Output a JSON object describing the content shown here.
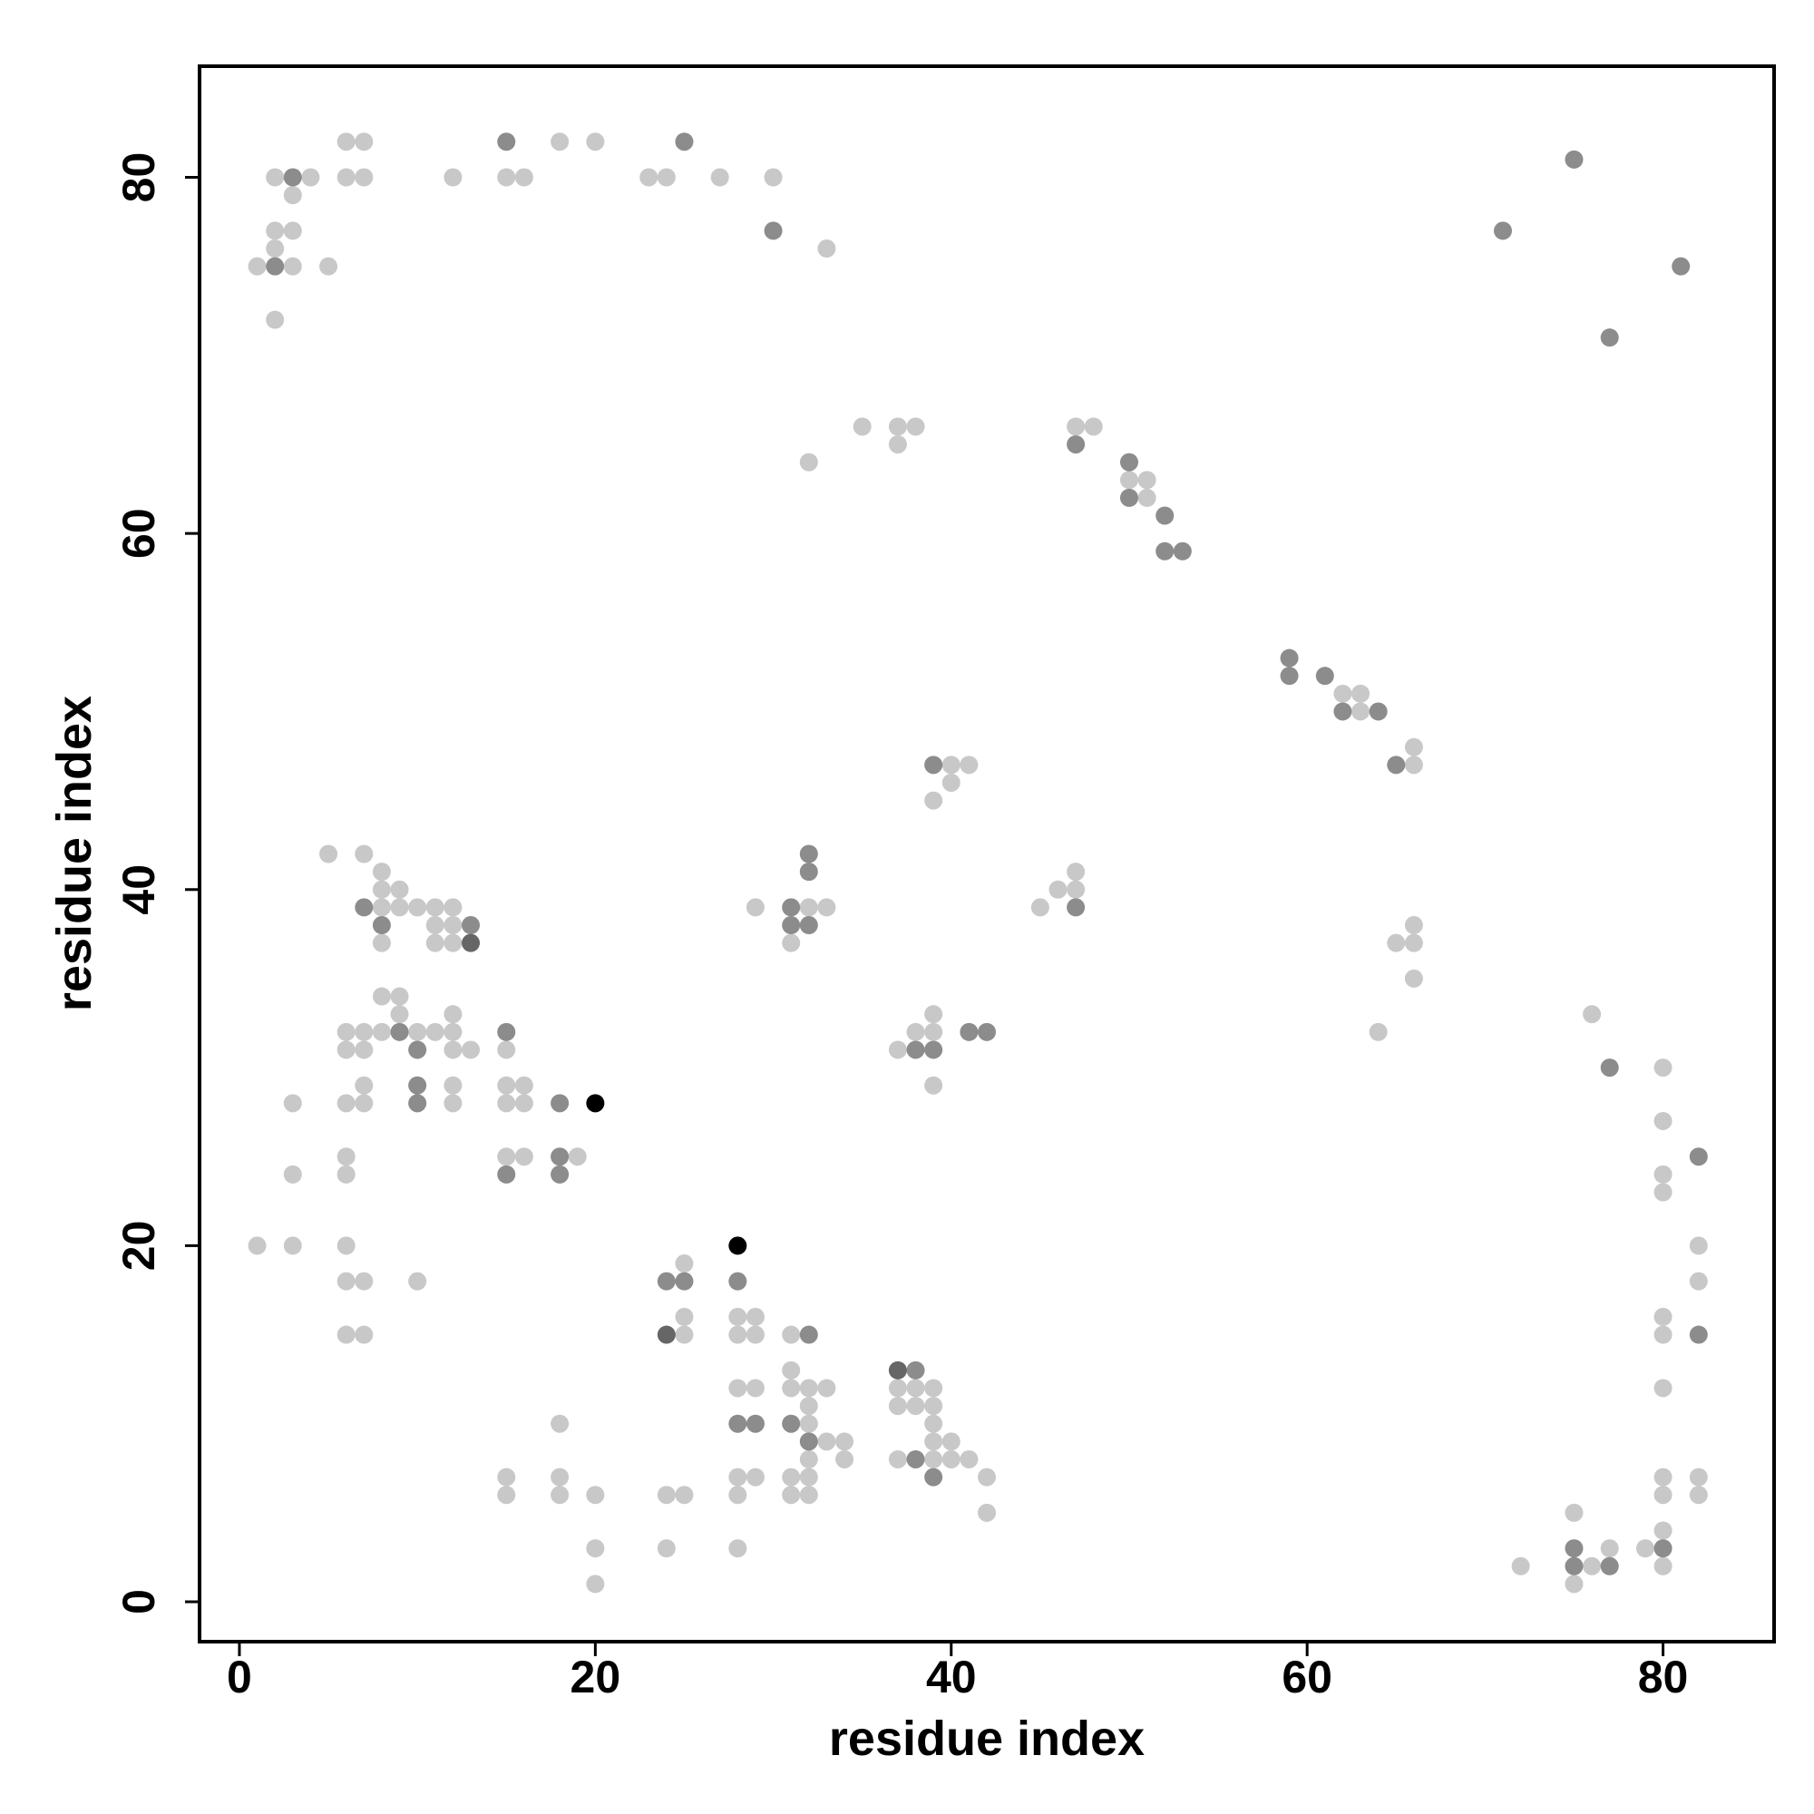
{
  "chart_data": {
    "type": "scatter",
    "x_label": "residue index",
    "y_label": "residue index",
    "xlim": [
      -2.24,
      86.24
    ],
    "ylim": [
      -2.24,
      86.24
    ],
    "xticks": [
      0,
      20,
      40,
      60,
      80
    ],
    "yticks": [
      0,
      20,
      40,
      60,
      80
    ],
    "grid": false,
    "series": [
      {
        "color": "#c8c8c8",
        "x": [
          6,
          7,
          18,
          20,
          2,
          4,
          6,
          7,
          12,
          15,
          16,
          23,
          24,
          27,
          30,
          3,
          2,
          3,
          2,
          33,
          1,
          3,
          5,
          2,
          35,
          37,
          38,
          47,
          48,
          37,
          32,
          50,
          51,
          51,
          62,
          63,
          63,
          66,
          40,
          41,
          66,
          40,
          39,
          5,
          7,
          8,
          47,
          8,
          9,
          46,
          47,
          8,
          9,
          10,
          11,
          12,
          29,
          32,
          33,
          45,
          11,
          12,
          66,
          8,
          11,
          12,
          31,
          65,
          66,
          66,
          8,
          9,
          9,
          12,
          39,
          76,
          6,
          7,
          8,
          10,
          11,
          12,
          38,
          39,
          64,
          6,
          7,
          12,
          13,
          15,
          37,
          80,
          7,
          12,
          15,
          16,
          39,
          3,
          6,
          7,
          12,
          15,
          16,
          80,
          6,
          15,
          16,
          19,
          3,
          6,
          80,
          80,
          1,
          3,
          6,
          82,
          25,
          6,
          7,
          10,
          82,
          25,
          28,
          29,
          80,
          6,
          7,
          25,
          28,
          29,
          31,
          80,
          31,
          28,
          29,
          31,
          32,
          33,
          37,
          38,
          39,
          80,
          32,
          37,
          38,
          39,
          18,
          32,
          39,
          33,
          34,
          39,
          40,
          32,
          34,
          37,
          39,
          40,
          41,
          15,
          18,
          28,
          29,
          31,
          32,
          42,
          80,
          82,
          15,
          18,
          20,
          24,
          25,
          28,
          31,
          32,
          80,
          82,
          42,
          75,
          80,
          20,
          24,
          28,
          77,
          79,
          72,
          76,
          80,
          20,
          75
        ],
        "values": [
          82,
          82,
          82,
          82,
          80,
          80,
          80,
          80,
          80,
          80,
          80,
          80,
          80,
          80,
          80,
          79,
          77,
          77,
          76,
          76,
          75,
          75,
          75,
          72,
          66,
          66,
          66,
          66,
          66,
          65,
          64,
          63,
          63,
          62,
          51,
          51,
          50,
          48,
          47,
          47,
          47,
          46,
          45,
          42,
          42,
          41,
          41,
          40,
          40,
          40,
          40,
          39,
          39,
          39,
          39,
          39,
          39,
          39,
          39,
          39,
          38,
          38,
          38,
          37,
          37,
          37,
          37,
          37,
          37,
          35,
          34,
          34,
          33,
          33,
          33,
          33,
          32,
          32,
          32,
          32,
          32,
          32,
          32,
          32,
          32,
          31,
          31,
          31,
          31,
          31,
          31,
          30,
          29,
          29,
          29,
          29,
          29,
          28,
          28,
          28,
          28,
          28,
          28,
          27,
          25,
          25,
          25,
          25,
          24,
          24,
          24,
          23,
          20,
          20,
          20,
          20,
          19,
          18,
          18,
          18,
          18,
          16,
          16,
          16,
          16,
          15,
          15,
          15,
          15,
          15,
          15,
          15,
          13,
          12,
          12,
          12,
          12,
          12,
          12,
          12,
          12,
          12,
          11,
          11,
          11,
          11,
          10,
          10,
          10,
          9,
          9,
          9,
          9,
          8,
          8,
          8,
          8,
          8,
          8,
          7,
          7,
          7,
          7,
          7,
          7,
          7,
          7,
          7,
          6,
          6,
          6,
          6,
          6,
          6,
          6,
          6,
          6,
          6,
          5,
          5,
          4,
          3,
          3,
          3,
          3,
          3,
          2,
          2,
          2,
          1,
          1
        ]
      },
      {
        "color": "#8c8c8c",
        "x": [
          15,
          25,
          75,
          3,
          30,
          71,
          2,
          81,
          77,
          47,
          50,
          50,
          52,
          52,
          53,
          59,
          59,
          61,
          62,
          64,
          39,
          65,
          32,
          32,
          7,
          31,
          47,
          8,
          13,
          31,
          32,
          9,
          15,
          41,
          42,
          10,
          38,
          39,
          77,
          10,
          10,
          18,
          18,
          82,
          15,
          18,
          24,
          25,
          28,
          32,
          82,
          38,
          28,
          29,
          31,
          32,
          38,
          39,
          75,
          80,
          75,
          77
        ],
        "values": [
          82,
          82,
          81,
          80,
          77,
          77,
          75,
          75,
          71,
          65,
          64,
          62,
          61,
          59,
          59,
          53,
          52,
          52,
          50,
          50,
          47,
          47,
          42,
          41,
          39,
          39,
          39,
          38,
          38,
          38,
          38,
          32,
          32,
          32,
          32,
          31,
          31,
          31,
          30,
          29,
          28,
          28,
          25,
          25,
          24,
          24,
          18,
          18,
          18,
          15,
          15,
          13,
          10,
          10,
          10,
          9,
          8,
          7,
          3,
          3,
          2,
          2
        ]
      },
      {
        "color": "#666666",
        "x": [
          13,
          24,
          37
        ],
        "values": [
          37,
          15,
          13
        ]
      },
      {
        "color": "#000000",
        "x": [
          20,
          28
        ],
        "values": [
          28,
          20
        ]
      }
    ]
  }
}
